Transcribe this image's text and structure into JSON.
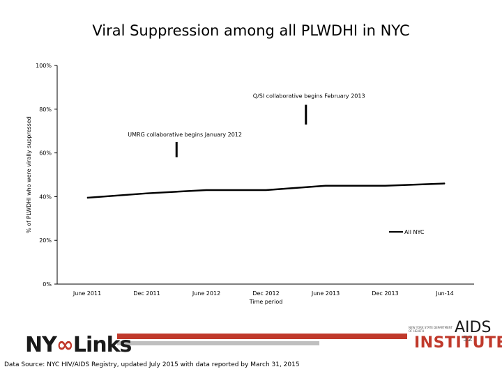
{
  "chart_data": {
    "type": "line",
    "title": "Viral Suppression among all PLWDHI in NYC",
    "xlabel": "Time period",
    "ylabel": "% of PLWDHI who were virally suppressed",
    "categories": [
      "June 2011",
      "Dec 2011",
      "June 2012",
      "Dec 2012",
      "June 2013",
      "Dec 2013",
      "Jun-14"
    ],
    "y_ticks": [
      "0%",
      "20%",
      "40%",
      "60%",
      "80%",
      "100%"
    ],
    "ylim": [
      0,
      100
    ],
    "series": [
      {
        "name": "All NYC",
        "values": [
          39.5,
          41.5,
          43,
          43,
          45,
          45,
          46
        ],
        "color": "#000000"
      }
    ],
    "annotations": [
      {
        "text": "UMRG collaborative begins January 2012",
        "x": 1.5,
        "y_from": 65,
        "y_to": 58
      },
      {
        "text": "Q/SI collaborative begins February 2013",
        "x": 3.67,
        "y_from": 82,
        "y_to": 73
      }
    ],
    "legend_position": "right",
    "grid": false
  },
  "footer": {
    "source": "Data Source: NYC HIV/AIDS Registry, updated July 2015 with data reported by March 31, 2015",
    "page_number": "52"
  },
  "logos": {
    "nylinks_prefix": "NY",
    "nylinks_chain": "∞",
    "nylinks_suffix": "Links",
    "aids": "AIDS",
    "institute": "INSTITUTE",
    "aids_small": "NEW YORK STATE DEPARTMENT OF HEALTH"
  },
  "colors": {
    "bar_red": "#c0392b",
    "bar_gray": "#bfbfbf"
  }
}
